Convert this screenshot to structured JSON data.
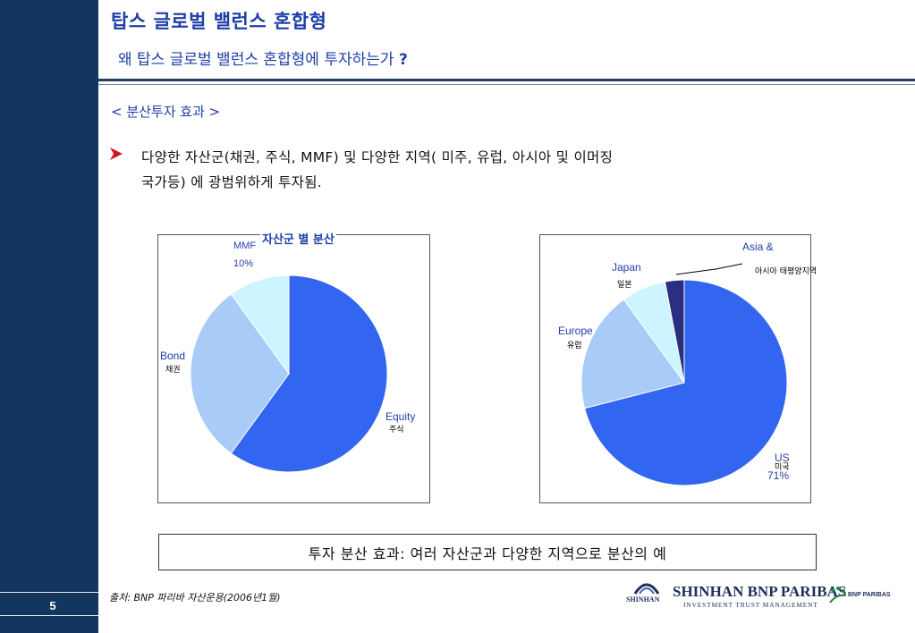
{
  "page": {
    "number": "5",
    "title": "탑스 글로벌 밸런스 혼합형",
    "subtitle": "왜 탑스 글로벌 밸런스 혼합형에 투자하는가",
    "subtitle_mark": "?",
    "section_label": "< 분산투자 효과 >",
    "bullet_line1": "다양한 자산군(채권, 주식, MMF) 및 다양한 지역( 미주, 유럽, 아시아 및 이머징",
    "bullet_line2": "국가등) 에 광범위하게 투자됨.",
    "caption": "투자 분산 효과: 여러 자산군과 다양한 지역으로 분산의 예",
    "source": "출처: BNP 파리바 자산운용(2006년1월)"
  },
  "colors": {
    "sidebar": "#12365f",
    "title_blue": "#1f3fa8",
    "pie_dark": "#3366f0",
    "pie_light": "#a8cbf7",
    "pie_pale": "#ccf5ff",
    "pie_navy": "#2a2f80"
  },
  "logo": {
    "main": "SHINHAN BNP PARIBAS",
    "sub": "INVESTMENT TRUST MANAGEMENT",
    "mark_name": "SHINHAN",
    "bnp": "BNP PARIBAS"
  },
  "chart_data": [
    {
      "type": "pie",
      "title": "자산군 별 분산",
      "slices": [
        {
          "label": "Equity",
          "label_kr": "주식",
          "value": 60
        },
        {
          "label": "Bond",
          "label_kr": "채권",
          "value": 30
        },
        {
          "label": "MMF",
          "label_kr": "",
          "value": 10,
          "pct_text": "10%"
        }
      ]
    },
    {
      "type": "pie",
      "title": "",
      "slices": [
        {
          "label": "US",
          "label_kr": "미국",
          "value": 71,
          "pct_text": "71%"
        },
        {
          "label": "Europe",
          "label_kr": "유럽",
          "value": 19
        },
        {
          "label": "Japan",
          "label_kr": "일본",
          "value": 7
        },
        {
          "label": "Asia &",
          "label_kr": "아시아 태평양지역",
          "value": 3
        }
      ]
    }
  ]
}
